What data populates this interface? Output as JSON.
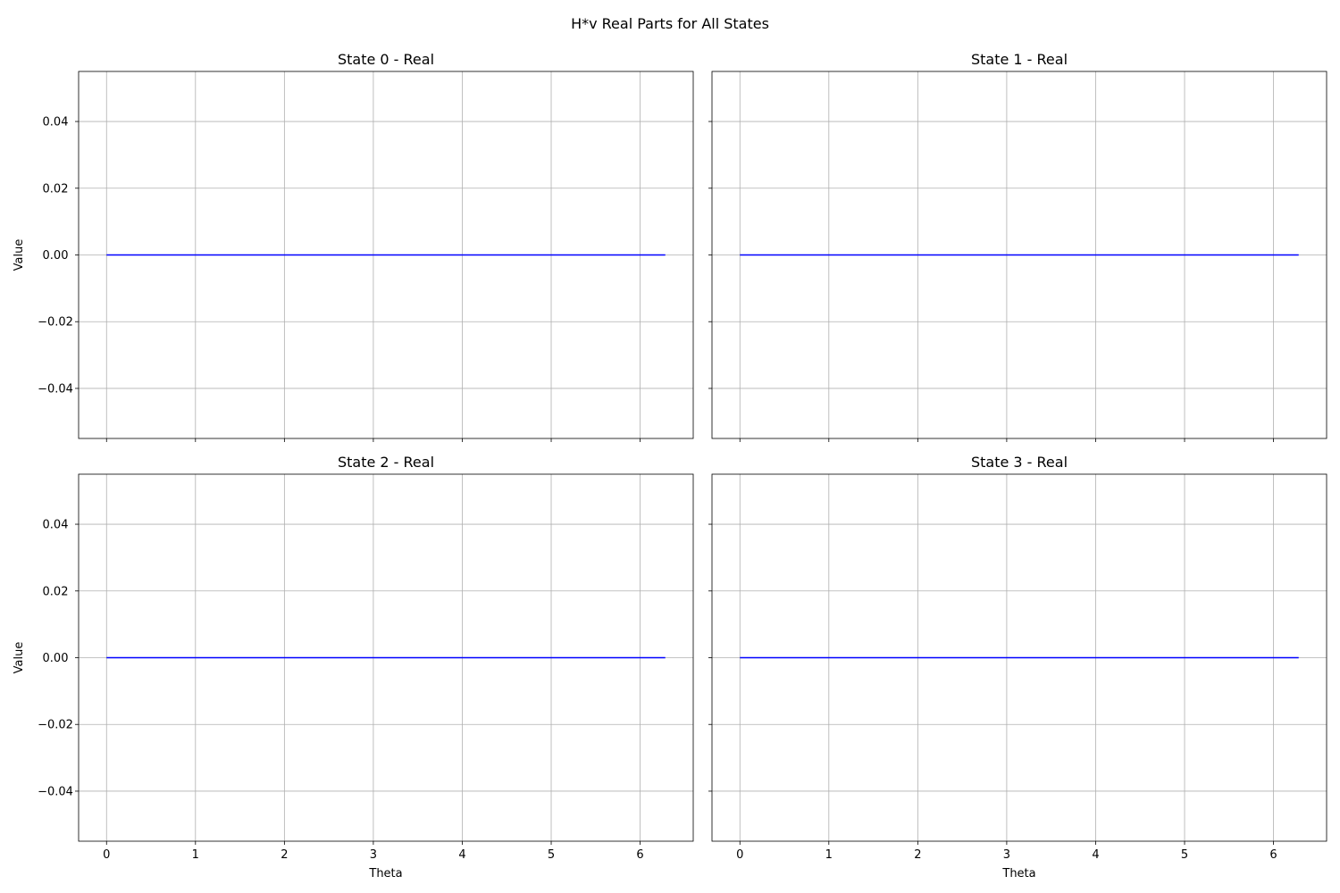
{
  "figure": {
    "suptitle": "H*v Real Parts for All States",
    "line_color": "#0000ff",
    "grid_color": "#b0b0b0",
    "shared_x": true,
    "shared_y": true
  },
  "chart_data": [
    {
      "type": "line",
      "title": "State 0 - Real",
      "xlabel": "",
      "ylabel": "Value",
      "xlim": [
        -0.314,
        6.597
      ],
      "ylim": [
        -0.055,
        0.055
      ],
      "xticks": [
        0,
        1,
        2,
        3,
        4,
        5,
        6
      ],
      "xtick_labels": [
        "0",
        "1",
        "2",
        "3",
        "4",
        "5",
        "6"
      ],
      "yticks": [
        0.04,
        0.02,
        0.0,
        -0.02,
        -0.04
      ],
      "ytick_labels": [
        "0.04",
        "0.02",
        "0.00",
        "−0.02",
        "−0.04"
      ],
      "grid": true,
      "series": [
        {
          "x": [
            0,
            6.283
          ],
          "y": [
            0,
            0
          ]
        }
      ]
    },
    {
      "type": "line",
      "title": "State 1 - Real",
      "xlabel": "",
      "ylabel": "",
      "xlim": [
        -0.314,
        6.597
      ],
      "ylim": [
        -0.055,
        0.055
      ],
      "xticks": [
        0,
        1,
        2,
        3,
        4,
        5,
        6
      ],
      "xtick_labels": [
        "0",
        "1",
        "2",
        "3",
        "4",
        "5",
        "6"
      ],
      "yticks": [
        0.04,
        0.02,
        0.0,
        -0.02,
        -0.04
      ],
      "ytick_labels": [
        "0.04",
        "0.02",
        "0.00",
        "−0.02",
        "−0.04"
      ],
      "grid": true,
      "series": [
        {
          "x": [
            0,
            6.283
          ],
          "y": [
            0,
            0
          ]
        }
      ]
    },
    {
      "type": "line",
      "title": "State 2 - Real",
      "xlabel": "Theta",
      "ylabel": "Value",
      "xlim": [
        -0.314,
        6.597
      ],
      "ylim": [
        -0.055,
        0.055
      ],
      "xticks": [
        0,
        1,
        2,
        3,
        4,
        5,
        6
      ],
      "xtick_labels": [
        "0",
        "1",
        "2",
        "3",
        "4",
        "5",
        "6"
      ],
      "yticks": [
        0.04,
        0.02,
        0.0,
        -0.02,
        -0.04
      ],
      "ytick_labels": [
        "0.04",
        "0.02",
        "0.00",
        "−0.02",
        "−0.04"
      ],
      "grid": true,
      "series": [
        {
          "x": [
            0,
            6.283
          ],
          "y": [
            0,
            0
          ]
        }
      ]
    },
    {
      "type": "line",
      "title": "State 3 - Real",
      "xlabel": "Theta",
      "ylabel": "",
      "xlim": [
        -0.314,
        6.597
      ],
      "ylim": [
        -0.055,
        0.055
      ],
      "xticks": [
        0,
        1,
        2,
        3,
        4,
        5,
        6
      ],
      "xtick_labels": [
        "0",
        "1",
        "2",
        "3",
        "4",
        "5",
        "6"
      ],
      "yticks": [
        0.04,
        0.02,
        0.0,
        -0.02,
        -0.04
      ],
      "ytick_labels": [
        "0.04",
        "0.02",
        "0.00",
        "−0.02",
        "−0.04"
      ],
      "grid": true,
      "series": [
        {
          "x": [
            0,
            6.283
          ],
          "y": [
            0,
            0
          ]
        }
      ]
    }
  ]
}
